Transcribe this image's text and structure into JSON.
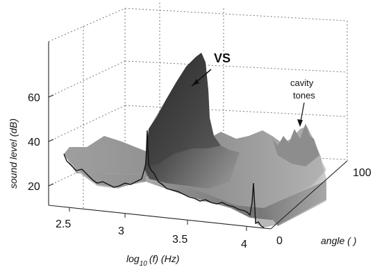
{
  "chart_data": {
    "type": "surface",
    "xlabel": "log",
    "xlabel_sub": "10",
    "xlabel_tail": "(f) (Hz)",
    "ylabel": "angle (  )",
    "zlabel": "sound level (dB)",
    "x_ticks": [
      "2.5",
      "3",
      "3.5",
      "4"
    ],
    "y_ticks": [
      "0",
      "100"
    ],
    "z_ticks": [
      "20",
      "40",
      "60"
    ],
    "xlim": [
      2.3,
      4.1
    ],
    "ylim": [
      0,
      140
    ],
    "zlim": [
      10,
      75
    ],
    "grid": true,
    "annotations": [
      {
        "text": "VS",
        "x": 3.45,
        "y": 20,
        "z": 72
      },
      {
        "text": "cavity",
        "text2": "tones",
        "x": 3.95,
        "y": 60,
        "z": 48
      }
    ],
    "front_edge": {
      "angle": 0,
      "x": [
        2.3,
        2.4,
        2.5,
        2.6,
        2.7,
        2.8,
        2.9,
        3.0,
        3.05,
        3.1,
        3.2,
        3.3,
        3.4,
        3.5,
        3.6,
        3.7,
        3.8,
        3.85,
        3.9,
        4.0
      ],
      "z": [
        30,
        29,
        28,
        27,
        25,
        24,
        23,
        22,
        24,
        31,
        29,
        27,
        26,
        24,
        22,
        21,
        20,
        30,
        18,
        14
      ]
    },
    "vs_peak": {
      "angle": 25,
      "x": [
        3.05,
        3.2,
        3.35,
        3.45,
        3.55,
        3.7
      ],
      "z": [
        28,
        45,
        62,
        72,
        58,
        32
      ]
    },
    "cavity_tones": {
      "angle": 60,
      "x": [
        3.75,
        3.85,
        3.95,
        4.05
      ],
      "z": [
        40,
        46,
        48,
        38
      ]
    }
  }
}
